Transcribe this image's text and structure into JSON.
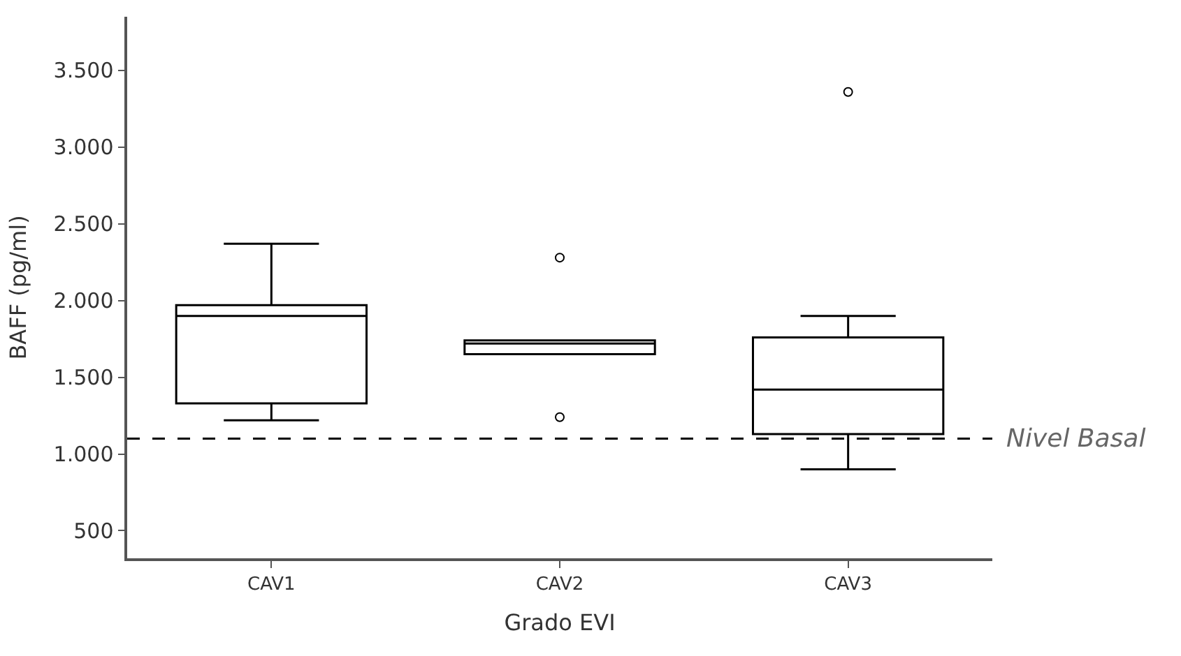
{
  "chart_data": {
    "type": "box",
    "xlabel": "Grado EVI",
    "ylabel": "BAFF (pg/ml)",
    "categories": [
      "CAV1",
      "CAV2",
      "CAV3"
    ],
    "boxes": [
      {
        "low": 1220,
        "q1": 1330,
        "median": 1900,
        "q3": 1970,
        "high": 2370
      },
      {
        "low": 1650,
        "q1": 1650,
        "median": 1720,
        "q3": 1740,
        "high": 1740,
        "outliers": [
          2280,
          1240
        ]
      },
      {
        "low": 900,
        "q1": 1130,
        "median": 1420,
        "q3": 1760,
        "high": 1900,
        "outliers": [
          3360
        ]
      }
    ],
    "ylim": [
      320,
      3850
    ],
    "yticks": [
      {
        "value": 500,
        "label": "500"
      },
      {
        "value": 1000,
        "label": "1.000"
      },
      {
        "value": 1500,
        "label": "1.500"
      },
      {
        "value": 2000,
        "label": "2.000"
      },
      {
        "value": 2500,
        "label": "2.500"
      },
      {
        "value": 3000,
        "label": "3.000"
      },
      {
        "value": 3500,
        "label": "3.500"
      }
    ],
    "ref_lines": [
      {
        "axis": "y",
        "value": 1100,
        "label": "Nivel Basal",
        "line_style": "dashed"
      }
    ]
  }
}
